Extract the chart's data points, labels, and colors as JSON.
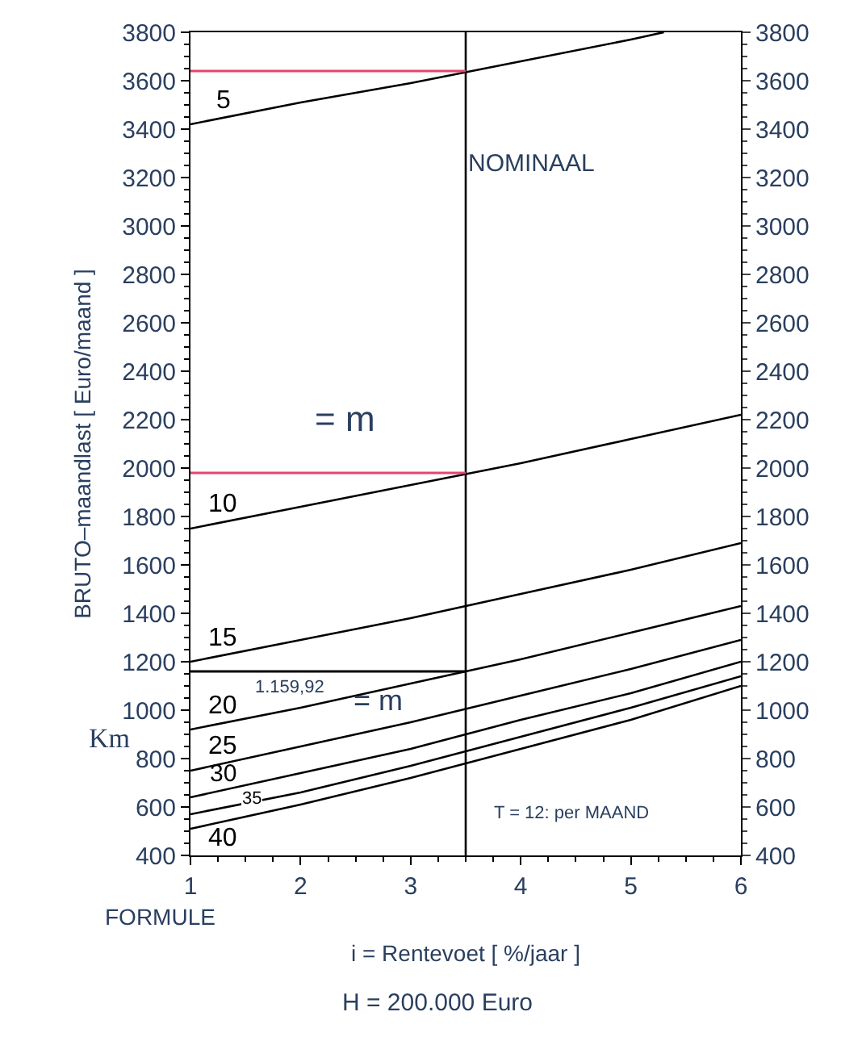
{
  "chart_data": {
    "type": "line",
    "xlabel": "i = Rentevoet [ %/jaar ]",
    "ylabel": "BRUTO–maandlast [ Euro/maand ]",
    "x": [
      1,
      2,
      3,
      4,
      5,
      6
    ],
    "series": [
      {
        "name": "5",
        "color": "#000000",
        "x": [
          1,
          2,
          3,
          4,
          5,
          5.3
        ],
        "values": [
          3420,
          3510,
          3590,
          3680,
          3770,
          3800
        ]
      },
      {
        "name": "10",
        "color": "#000000",
        "values": [
          1750,
          1840,
          1930,
          2020,
          2120,
          2220
        ]
      },
      {
        "name": "15",
        "color": "#000000",
        "values": [
          1200,
          1290,
          1380,
          1480,
          1580,
          1690
        ]
      },
      {
        "name": "20",
        "color": "#000000",
        "values": [
          920,
          1010,
          1110,
          1210,
          1320,
          1430
        ]
      },
      {
        "name": "25",
        "color": "#000000",
        "values": [
          750,
          850,
          950,
          1060,
          1170,
          1290
        ]
      },
      {
        "name": "30",
        "color": "#000000",
        "values": [
          640,
          740,
          840,
          960,
          1070,
          1200
        ]
      },
      {
        "name": "35",
        "color": "#000000",
        "values": [
          570,
          660,
          770,
          890,
          1010,
          1140
        ]
      },
      {
        "name": "40",
        "color": "#000000",
        "values": [
          510,
          610,
          720,
          840,
          960,
          1100
        ]
      }
    ],
    "xlim": [
      1,
      6
    ],
    "xticks": [
      1,
      2,
      3,
      4,
      5,
      6
    ],
    "ylim": [
      400,
      3800
    ],
    "yticks": [
      400,
      600,
      800,
      1000,
      1200,
      1400,
      1600,
      1800,
      2000,
      2200,
      2400,
      2600,
      2800,
      3000,
      3200,
      3400,
      3600,
      3800
    ],
    "y2lim": [
      400,
      3800
    ],
    "y2ticks": [
      400,
      600,
      800,
      1000,
      1200,
      1400,
      1600,
      1800,
      2000,
      2200,
      2400,
      2600,
      2800,
      3000,
      3200,
      3400,
      3600,
      3800
    ],
    "ref_lines": [
      {
        "axis": "x",
        "value": 3.5,
        "color": "#000000"
      },
      {
        "axis": "y",
        "value": 3640,
        "color": "#e8436a"
      },
      {
        "axis": "y",
        "value": 1980,
        "color": "#e8436a"
      },
      {
        "axis": "y",
        "value": 1159.92,
        "color": "#000000",
        "label": "1.159,92"
      }
    ],
    "annotations": [
      "NOMINAAL",
      "= m",
      "= m",
      "T = 12: per MAAND",
      "Km",
      "FORMULE",
      "H = 200.000 Euro"
    ],
    "grid": false,
    "marker": "none",
    "line_style": "solid"
  }
}
